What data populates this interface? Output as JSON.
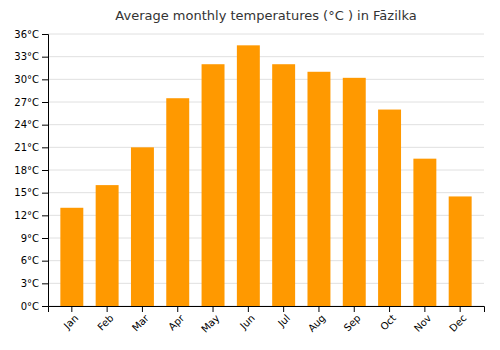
{
  "chart_data": {
    "type": "bar",
    "title": "Average monthly temperatures (°C ) in Fāzilka",
    "categories": [
      "Jan",
      "Feb",
      "Mar",
      "Apr",
      "May",
      "Jun",
      "Jul",
      "Aug",
      "Sep",
      "Oct",
      "Nov",
      "Dec"
    ],
    "values": [
      13,
      16,
      21,
      27.5,
      32,
      34.5,
      32,
      31,
      30.2,
      26,
      19.5,
      14.5
    ],
    "color": "#FF9900",
    "ylim": [
      0,
      36
    ],
    "yticks": [
      {
        "value": 0,
        "label": "0°C"
      },
      {
        "value": 3,
        "label": "3°C"
      },
      {
        "value": 6,
        "label": "6°C"
      },
      {
        "value": 9,
        "label": "9°C"
      },
      {
        "value": 12,
        "label": "12°C"
      },
      {
        "value": 15,
        "label": "15°C"
      },
      {
        "value": 18,
        "label": "18°C"
      },
      {
        "value": 21,
        "label": "21°C"
      },
      {
        "value": 24,
        "label": "24°C"
      },
      {
        "value": 27,
        "label": "27°C"
      },
      {
        "value": 30,
        "label": "30°C"
      },
      {
        "value": 33,
        "label": "33°C"
      },
      {
        "value": 36,
        "label": "36°C"
      }
    ],
    "grid": true
  }
}
